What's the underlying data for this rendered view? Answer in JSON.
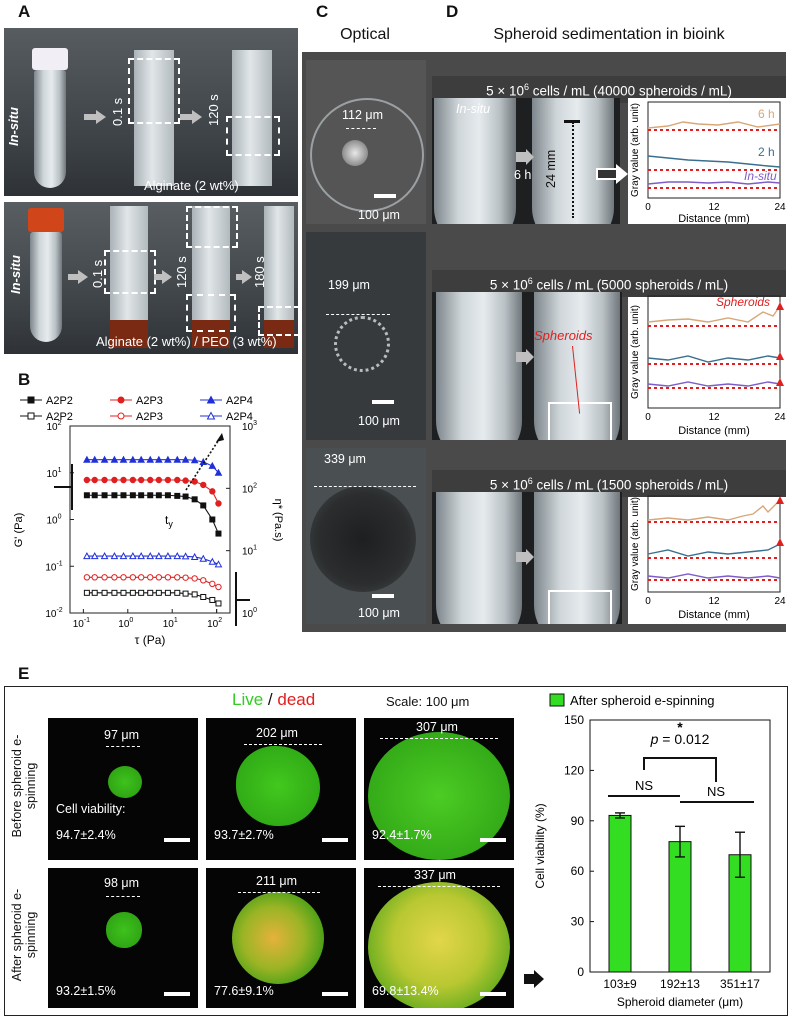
{
  "panel_labels": {
    "a": "A",
    "b": "B",
    "c": "C",
    "d": "D",
    "e": "E"
  },
  "panel_a": {
    "top": {
      "insitu": "In-situ",
      "t1": "0.1 s",
      "t2": "120 s",
      "material": "Alginate (2 wt%)"
    },
    "bottom": {
      "insitu": "In-situ",
      "t1": "0.1 s",
      "t2": "120 s",
      "t3": "180 s",
      "material": "Alginate (2 wt%) / PEO (3 wt%)"
    }
  },
  "panel_c": {
    "title": "Optical",
    "rows": [
      {
        "diameter": "112 μm",
        "scale": "100 μm"
      },
      {
        "diameter": "199 μm",
        "scale": "100 μm"
      },
      {
        "diameter": "339 μm",
        "scale": "100 μm"
      }
    ]
  },
  "panel_d": {
    "title": "Spheroid sedimentation in bioink",
    "rows": [
      {
        "header_pre": "5 × 10",
        "header_sup": "6",
        "header_post": " cells / mL (40000 spheroids / mL)",
        "insitu": "In-situ",
        "time": "6 h",
        "length": "24 mm",
        "labels": {
          "l6h": "6 h",
          "l2h": "2 h",
          "linsitu": "In-situ"
        }
      },
      {
        "header_pre": "5 × 10",
        "header_sup": "6",
        "header_post": " cells / mL (5000 spheroids / mL)",
        "spheroids": "Spheroids",
        "plot_spheroids": "Spheroids"
      },
      {
        "header_pre": "5 × 10",
        "header_sup": "6",
        "header_post": " cells / mL (1500 spheroids / mL)"
      }
    ],
    "axes": {
      "ylabel": "Gray value (arb. unit)",
      "xlabel": "Distance (mm)",
      "xticks": [
        "0",
        "12",
        "24"
      ]
    }
  },
  "panel_e": {
    "live": "Live",
    "slash": " / ",
    "dead": "dead",
    "scale": "Scale: 100 μm",
    "row_before": "Before spheroid e-spinning",
    "row_after": "After spheroid e-spinning",
    "viability_label": "Cell viability:",
    "before": [
      {
        "diameter": "97 μm",
        "viability": "94.7±2.4%"
      },
      {
        "diameter": "202 μm",
        "viability": "93.7±2.7%"
      },
      {
        "diameter": "307 μm",
        "viability": "92.4±1.7%"
      }
    ],
    "after": [
      {
        "diameter": "98 μm",
        "viability": "93.2±1.5%"
      },
      {
        "diameter": "211 μm",
        "viability": "77.6±9.1%"
      },
      {
        "diameter": "337 μm",
        "viability": "69.8±13.4%"
      }
    ]
  },
  "chart_data": [
    {
      "type": "line",
      "panel": "B",
      "xlabel": "τ (Pa)",
      "ylabel_left": "G' (Pa)",
      "ylabel_right": "η* (Pa.s)",
      "xscale": "log",
      "xlim": [
        0.05,
        200
      ],
      "ylim_left": [
        0.01,
        100
      ],
      "ylim_right": [
        1,
        1000
      ],
      "legend_filled": [
        "A2P2",
        "A2P3",
        "A2P4"
      ],
      "legend_open": [
        "A2P2",
        "A2P3",
        "A2P4"
      ],
      "annotation": "t",
      "annotation_sub": "y",
      "xticks": [
        "10",
        "10",
        "10",
        "10",
        "10"
      ],
      "xtick_exps": [
        "-1",
        "0",
        "1",
        "2",
        ""
      ],
      "yticks_left": [
        "10",
        "10",
        "10",
        "10",
        "10"
      ],
      "ytick_left_exps": [
        "-2",
        "-1",
        "0",
        "1",
        "2"
      ],
      "yticks_right": [
        "10",
        "10",
        "10",
        "10"
      ],
      "ytick_right_exps": [
        "0",
        "1",
        "2",
        "3"
      ],
      "x": [
        0.12,
        0.18,
        0.3,
        0.5,
        0.8,
        1.3,
        2,
        3.2,
        5,
        8,
        13,
        20,
        32,
        50,
        80,
        110
      ],
      "series": [
        {
          "name": "A2P2",
          "style": "filled",
          "color": "#111111",
          "values": [
            3.3,
            3.3,
            3.3,
            3.3,
            3.3,
            3.3,
            3.3,
            3.3,
            3.3,
            3.3,
            3.2,
            3.1,
            2.7,
            2.0,
            1.0,
            0.5
          ]
        },
        {
          "name": "A2P3",
          "style": "filled",
          "color": "#e02020",
          "values": [
            7,
            7,
            7,
            7,
            7,
            7,
            7,
            7,
            7,
            7,
            7,
            6.8,
            6.5,
            5.5,
            4.0,
            2.2
          ]
        },
        {
          "name": "A2P4",
          "style": "filled",
          "color": "#2030d8",
          "values": [
            19,
            19,
            19,
            19,
            19,
            19,
            19,
            19,
            19,
            19,
            19,
            19,
            18.5,
            17,
            14,
            10
          ]
        },
        {
          "name": "A2P2",
          "style": "open",
          "color": "#111111",
          "values": [
            0.027,
            0.027,
            0.027,
            0.027,
            0.027,
            0.027,
            0.027,
            0.027,
            0.027,
            0.027,
            0.027,
            0.026,
            0.025,
            0.022,
            0.019,
            0.016
          ]
        },
        {
          "name": "A2P3",
          "style": "open",
          "color": "#e02020",
          "values": [
            0.058,
            0.058,
            0.058,
            0.058,
            0.058,
            0.058,
            0.058,
            0.058,
            0.058,
            0.058,
            0.058,
            0.057,
            0.055,
            0.05,
            0.042,
            0.036
          ]
        },
        {
          "name": "A2P4",
          "style": "open",
          "color": "#2030d8",
          "values": [
            0.165,
            0.165,
            0.165,
            0.165,
            0.165,
            0.165,
            0.165,
            0.165,
            0.165,
            0.165,
            0.165,
            0.163,
            0.158,
            0.145,
            0.125,
            0.11
          ]
        }
      ]
    },
    {
      "type": "bar",
      "panel": "E",
      "legend": "After spheroid e-spinning",
      "ylabel": "Cell viability (%)",
      "xlabel": "Spheroid diameter (μm)",
      "categories": [
        "103±9",
        "192±13",
        "351±17"
      ],
      "values": [
        93.2,
        77.6,
        69.8
      ],
      "errors": [
        1.5,
        9.1,
        13.4
      ],
      "ylim": [
        0,
        150
      ],
      "yticks": [
        "0",
        "30",
        "60",
        "90",
        "120",
        "150"
      ],
      "color": "#33dd22",
      "sig": {
        "p": "p",
        "p_rest": " = 0.012",
        "star": "*",
        "ns1": "NS",
        "ns2": "NS"
      }
    }
  ]
}
